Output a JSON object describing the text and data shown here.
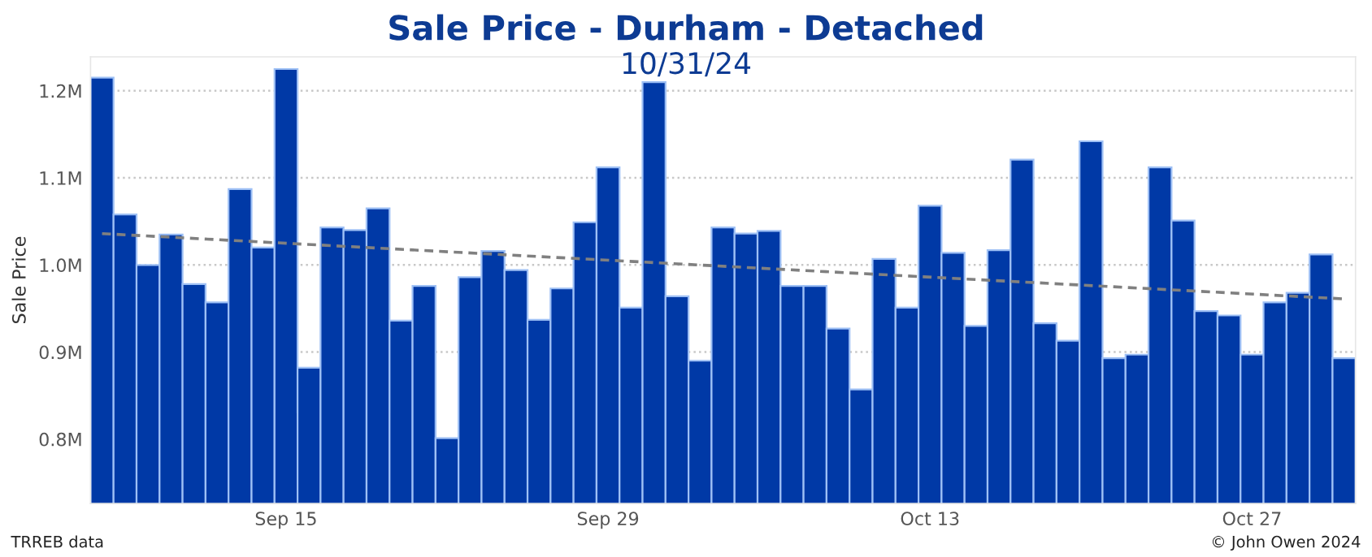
{
  "chart_data": {
    "type": "bar",
    "title": "Sale Price - Durham - Detached",
    "subtitle": "10/31/24",
    "ylabel": "Sale Price",
    "x": [
      "2024-09-07",
      "2024-09-08",
      "2024-09-09",
      "2024-09-10",
      "2024-09-11",
      "2024-09-12",
      "2024-09-13",
      "2024-09-14",
      "2024-09-15",
      "2024-09-16",
      "2024-09-17",
      "2024-09-18",
      "2024-09-19",
      "2024-09-20",
      "2024-09-21",
      "2024-09-22",
      "2024-09-23",
      "2024-09-24",
      "2024-09-25",
      "2024-09-26",
      "2024-09-27",
      "2024-09-28",
      "2024-09-29",
      "2024-09-30",
      "2024-10-01",
      "2024-10-02",
      "2024-10-03",
      "2024-10-04",
      "2024-10-05",
      "2024-10-06",
      "2024-10-07",
      "2024-10-08",
      "2024-10-09",
      "2024-10-10",
      "2024-10-11",
      "2024-10-12",
      "2024-10-13",
      "2024-10-14",
      "2024-10-15",
      "2024-10-16",
      "2024-10-17",
      "2024-10-18",
      "2024-10-19",
      "2024-10-20",
      "2024-10-21",
      "2024-10-22",
      "2024-10-23",
      "2024-10-24",
      "2024-10-25",
      "2024-10-26",
      "2024-10-27",
      "2024-10-28",
      "2024-10-29",
      "2024-10-30",
      "2024-10-31"
    ],
    "series": [
      {
        "color": "#0039a6",
        "values": [
          1215000,
          1058000,
          1000000,
          1035000,
          978000,
          957000,
          1087000,
          1020000,
          1225000,
          882000,
          1043000,
          1040000,
          1065000,
          936000,
          976000,
          801000,
          986000,
          1016000,
          994000,
          937000,
          973000,
          1049000,
          1112000,
          951000,
          1210000,
          964000,
          890000,
          1043000,
          1036000,
          1039000,
          976000,
          976000,
          927000,
          857000,
          1007000,
          951000,
          1068000,
          1014000,
          930000,
          1017000,
          1121000,
          933000,
          913000,
          1142000,
          893000,
          897000,
          1112000,
          1051000,
          947000,
          942000,
          897000,
          957000,
          968000,
          1012000,
          893000
        ]
      },
      {
        "type": "line",
        "color": "#808080",
        "line_style": "dashed",
        "x": [
          "2024-09-07",
          "2024-10-31"
        ],
        "values": [
          1036000,
          961000
        ]
      }
    ],
    "xlim": [
      "2024-09-06T12:00",
      "2024-10-31T12:00"
    ],
    "xticks": [
      {
        "value": "2024-09-15",
        "label": "Sep 15"
      },
      {
        "value": "2024-09-29",
        "label": "Sep 29"
      },
      {
        "value": "2024-10-13",
        "label": "Oct 13"
      },
      {
        "value": "2024-10-27",
        "label": "Oct 27"
      }
    ],
    "ylim": [
      726000,
      1239000
    ],
    "yticks": [
      {
        "value": 800000,
        "label": "0.8M"
      },
      {
        "value": 900000,
        "label": "0.9M"
      },
      {
        "value": 1000000,
        "label": "1.0M"
      },
      {
        "value": 1100000,
        "label": "1.1M"
      },
      {
        "value": 1200000,
        "label": "1.2M"
      }
    ],
    "grid": "y",
    "legend": false,
    "annotations": [
      "TRREB data",
      "© John Owen 2024"
    ]
  }
}
